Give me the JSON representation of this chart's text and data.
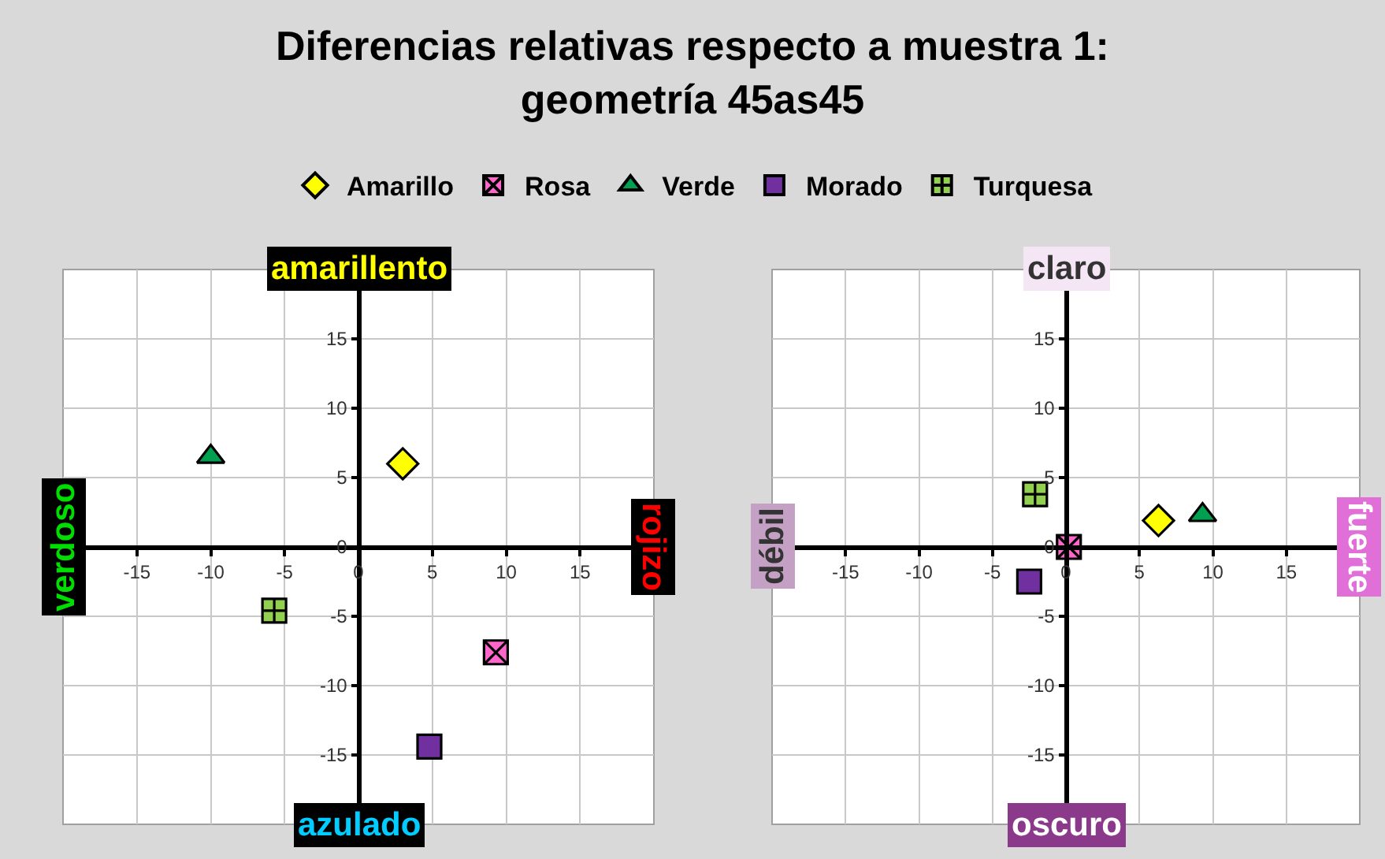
{
  "chart_data": [
    {
      "type": "scatter",
      "title": "Diferencias relativas respecto a muestra 1:\ngeometría 45as45",
      "legend": "top",
      "grid": true,
      "xlim": [
        -20,
        20
      ],
      "ylim": [
        -20,
        20
      ],
      "xticks": [
        -15,
        -10,
        -5,
        0,
        5,
        10,
        15
      ],
      "yticks": [
        -15,
        -10,
        -5,
        0,
        5,
        10,
        15
      ],
      "annotations": [
        "amarillento",
        "rojizo",
        "azulado",
        "verdoso"
      ],
      "series": [
        {
          "name": "Amarillo",
          "color": "#ffff00",
          "marker": "diamond",
          "x": [
            3
          ],
          "values": [
            6
          ]
        },
        {
          "name": "Rosa",
          "color": "#ff66cc",
          "marker": "cross",
          "x": [
            9.3
          ],
          "values": [
            -7.6
          ]
        },
        {
          "name": "Verde",
          "color": "#00a050",
          "marker": "triangle",
          "x": [
            -10
          ],
          "values": [
            6.5
          ]
        },
        {
          "name": "Morado",
          "color": "#7030a0",
          "marker": "square",
          "x": [
            4.8
          ],
          "values": [
            -14.4
          ]
        },
        {
          "name": "Turquesa",
          "color": "#92d050",
          "marker": "plus",
          "x": [
            -5.7
          ],
          "values": [
            -4.6
          ]
        }
      ]
    },
    {
      "type": "scatter",
      "grid": true,
      "xlim": [
        -20,
        20
      ],
      "ylim": [
        -20,
        20
      ],
      "xticks": [
        -15,
        -10,
        -5,
        0,
        5,
        10,
        15
      ],
      "yticks": [
        -15,
        -10,
        -5,
        0,
        5,
        10,
        15
      ],
      "annotations": [
        "claro",
        "fuerte",
        "oscuro",
        "débil"
      ],
      "series": [
        {
          "color": "#ffff00",
          "marker": "diamond",
          "x": [
            6.3
          ],
          "values": [
            1.9
          ]
        },
        {
          "color": "#ff66cc",
          "marker": "cross",
          "x": [
            0.2
          ],
          "values": [
            0
          ]
        },
        {
          "color": "#00a050",
          "marker": "triangle",
          "x": [
            9.3
          ],
          "values": [
            2.3
          ]
        },
        {
          "color": "#7030a0",
          "marker": "square",
          "x": [
            -2.5
          ],
          "values": [
            -2.5
          ]
        },
        {
          "color": "#92d050",
          "marker": "plus",
          "x": [
            -2.1
          ],
          "values": [
            3.8
          ]
        }
      ]
    }
  ]
}
